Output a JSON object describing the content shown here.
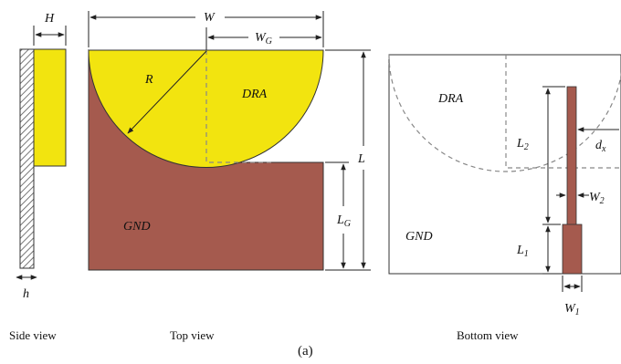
{
  "labels": {
    "H": "H",
    "W": "W",
    "WG_main": "W",
    "WG_sub": "G",
    "R": "R",
    "DRA_top": "DRA",
    "L": "L",
    "LG_main": "L",
    "LG_sub": "G",
    "GND_top": "GND",
    "h": "h",
    "DRA_bottom": "DRA",
    "L2_main": "L",
    "L2_sub": "2",
    "dx_main": "d",
    "dx_sub": "x",
    "W2_main": "W",
    "W2_sub": "2",
    "GND_bottom": "GND",
    "L1_main": "L",
    "L1_sub": "1",
    "W1_main": "W",
    "W1_sub": "1"
  },
  "captions": {
    "side": "Side view",
    "top": "Top view",
    "bottom": "Bottom view",
    "figure": "(a)"
  },
  "colors": {
    "dra": "#f2e40f",
    "gnd": "#a55a4e",
    "substrate_hatch": "#555555"
  }
}
